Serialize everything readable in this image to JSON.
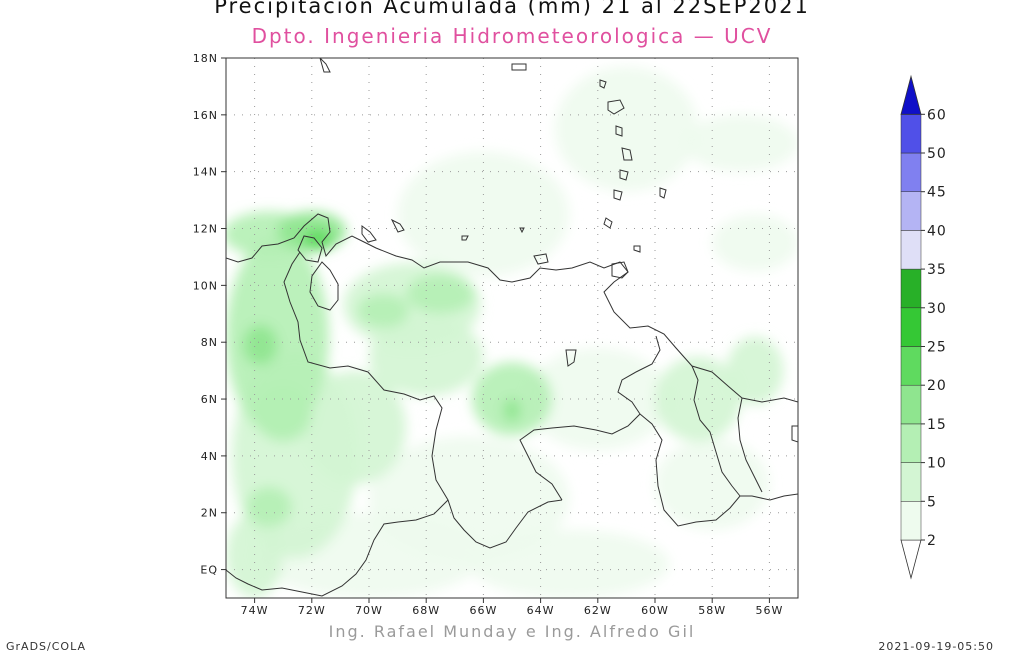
{
  "header": {
    "title": "Precipitacion Acumulada (mm) 21 al 22SEP2021",
    "subtitle": "Dpto. Ingenieria Hidrometeorologica — UCV"
  },
  "footer": {
    "credits": "Ing. Rafael Munday e Ing. Alfredo Gil",
    "software": "GrADS/COLA",
    "timestamp": "2021-09-19-05:50"
  },
  "map": {
    "lon_range": [
      -75,
      -55
    ],
    "lat_range": [
      -1,
      18
    ],
    "lon_ticks": [
      {
        "value": -74,
        "label": "74W"
      },
      {
        "value": -72,
        "label": "72W"
      },
      {
        "value": -70,
        "label": "70W"
      },
      {
        "value": -68,
        "label": "68W"
      },
      {
        "value": -66,
        "label": "66W"
      },
      {
        "value": -64,
        "label": "64W"
      },
      {
        "value": -62,
        "label": "62W"
      },
      {
        "value": -60,
        "label": "60W"
      },
      {
        "value": -58,
        "label": "58W"
      },
      {
        "value": -56,
        "label": "56W"
      }
    ],
    "lat_ticks": [
      {
        "value": 18,
        "label": "18N"
      },
      {
        "value": 16,
        "label": "16N"
      },
      {
        "value": 14,
        "label": "14N"
      },
      {
        "value": 12,
        "label": "12N"
      },
      {
        "value": 10,
        "label": "10N"
      },
      {
        "value": 8,
        "label": "8N"
      },
      {
        "value": 6,
        "label": "6N"
      },
      {
        "value": 4,
        "label": "4N"
      },
      {
        "value": 2,
        "label": "2N"
      },
      {
        "value": 0,
        "label": "EQ"
      }
    ],
    "precip_fields": [
      {
        "lon": -73.5,
        "lat": 11.8,
        "rlon": 1.6,
        "rlat": 0.8,
        "level": 10
      },
      {
        "lon": -72.0,
        "lat": 11.9,
        "rlon": 1.2,
        "rlat": 0.7,
        "level": 15
      },
      {
        "lon": -71.8,
        "lat": 11.6,
        "rlon": 0.5,
        "rlat": 0.4,
        "level": 20
      },
      {
        "lon": -73.2,
        "lat": 8.2,
        "rlon": 1.8,
        "rlat": 3.5,
        "level": 10
      },
      {
        "lon": -73.8,
        "lat": 7.9,
        "rlon": 0.6,
        "rlat": 0.7,
        "level": 15
      },
      {
        "lon": -72.6,
        "lat": 4.0,
        "rlon": 2.2,
        "rlat": 3.6,
        "level": 5
      },
      {
        "lon": -73.5,
        "lat": 2.2,
        "rlon": 0.8,
        "rlat": 0.7,
        "level": 10
      },
      {
        "lon": -73.0,
        "lat": 5.5,
        "rlon": 1.0,
        "rlat": 1.0,
        "level": 10
      },
      {
        "lon": -68.5,
        "lat": 9.3,
        "rlon": 2.4,
        "rlat": 1.5,
        "level": 5
      },
      {
        "lon": -67.5,
        "lat": 9.7,
        "rlon": 1.2,
        "rlat": 0.7,
        "level": 10
      },
      {
        "lon": -69.5,
        "lat": 9.1,
        "rlon": 0.9,
        "rlat": 0.6,
        "level": 10
      },
      {
        "lon": -65.0,
        "lat": 6.0,
        "rlon": 1.4,
        "rlat": 1.3,
        "level": 10
      },
      {
        "lon": -65.0,
        "lat": 5.6,
        "rlon": 0.3,
        "rlat": 0.4,
        "level": 15
      },
      {
        "lon": -68.0,
        "lat": 7.5,
        "rlon": 2.0,
        "rlat": 1.4,
        "level": 5
      },
      {
        "lon": -70.5,
        "lat": 5.0,
        "rlon": 1.8,
        "rlat": 2.0,
        "level": 5
      },
      {
        "lon": -66.5,
        "lat": 2.5,
        "rlon": 3.5,
        "rlat": 2.2,
        "level": 2
      },
      {
        "lon": -62.0,
        "lat": 6.0,
        "rlon": 2.5,
        "rlat": 1.8,
        "level": 2
      },
      {
        "lon": -58.5,
        "lat": 6.0,
        "rlon": 1.5,
        "rlat": 1.5,
        "level": 5
      },
      {
        "lon": -56.5,
        "lat": 7.0,
        "rlon": 1.0,
        "rlat": 1.2,
        "level": 5
      },
      {
        "lon": -58.0,
        "lat": 3.0,
        "rlon": 2.0,
        "rlat": 1.6,
        "level": 2
      },
      {
        "lon": -66.0,
        "lat": 12.5,
        "rlon": 3.0,
        "rlat": 2.2,
        "level": 2
      },
      {
        "lon": -61.0,
        "lat": 15.5,
        "rlon": 2.5,
        "rlat": 2.2,
        "level": 2
      },
      {
        "lon": -57.0,
        "lat": 15.0,
        "rlon": 2.0,
        "rlat": 1.0,
        "level": 2
      },
      {
        "lon": -56.5,
        "lat": 11.5,
        "rlon": 1.5,
        "rlat": 1.0,
        "level": 2
      },
      {
        "lon": -70.0,
        "lat": 0.5,
        "rlon": 4.0,
        "rlat": 1.5,
        "level": 2
      },
      {
        "lon": -63.0,
        "lat": 0.2,
        "rlon": 3.5,
        "rlat": 1.2,
        "level": 2
      },
      {
        "lon": -74.0,
        "lat": 0.5,
        "rlon": 1.0,
        "rlat": 1.5,
        "level": 5
      }
    ]
  },
  "colorbar": {
    "levels": [
      {
        "label": "2",
        "color": "#eefbee"
      },
      {
        "label": "5",
        "color": "#d3f5d3"
      },
      {
        "label": "10",
        "color": "#b4efb4"
      },
      {
        "label": "15",
        "color": "#8fe58f"
      },
      {
        "label": "20",
        "color": "#5fda5f"
      },
      {
        "label": "25",
        "color": "#35c835"
      },
      {
        "label": "30",
        "color": "#28b028"
      },
      {
        "label": "35",
        "color": "#dfdff7"
      },
      {
        "label": "40",
        "color": "#b4b4f4"
      },
      {
        "label": "45",
        "color": "#8080f0"
      },
      {
        "label": "50",
        "color": "#5050e8"
      },
      {
        "label": "60",
        "color": "#2020d8"
      }
    ],
    "overflow_color": "#1010c8",
    "underflow_color": "#ffffff"
  },
  "colors": {
    "coastline": "#333333",
    "frame": "#333333",
    "grid": "#9a9a9a",
    "ocean": "#ffffff"
  }
}
